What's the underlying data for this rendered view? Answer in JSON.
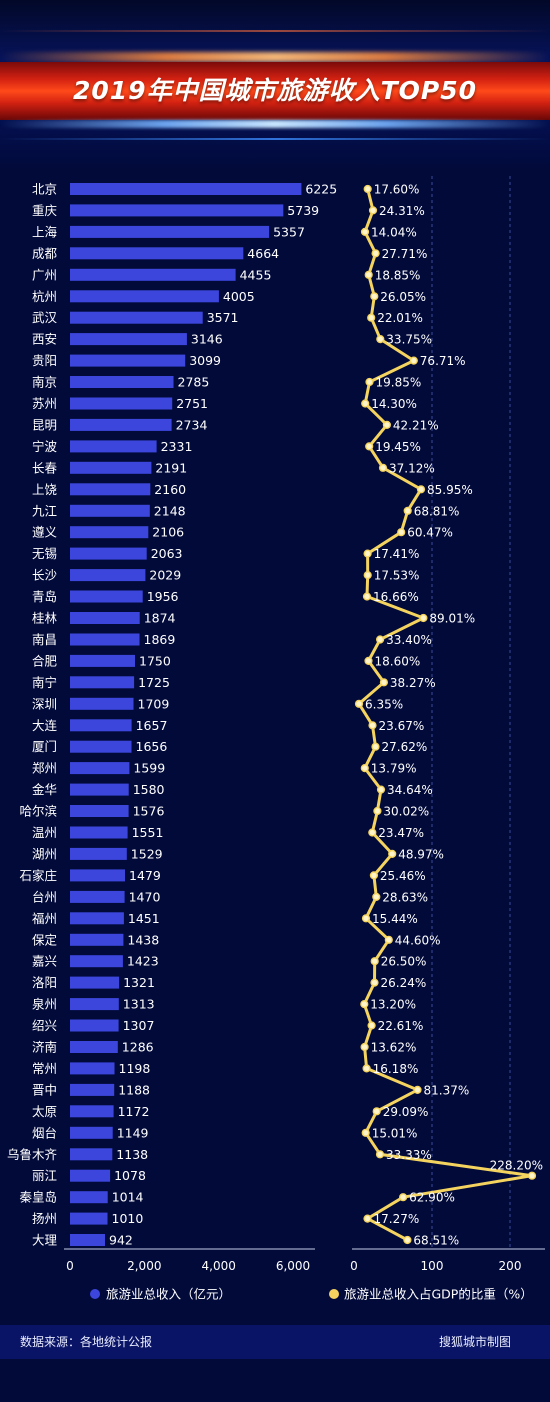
{
  "title": "2019年中国城市旅游收入TOP50",
  "source": "数据来源：各地统计公报",
  "credit": "搜狐城市制图",
  "colors": {
    "bar": "#3c46dc",
    "line": "#f4d35e",
    "background": "#020a3a",
    "footer": "#0a1466"
  },
  "chart_data": {
    "type": "bar+line",
    "categories": [
      "北京",
      "重庆",
      "上海",
      "成都",
      "广州",
      "杭州",
      "武汉",
      "西安",
      "贵阳",
      "南京",
      "苏州",
      "昆明",
      "宁波",
      "长春",
      "上饶",
      "九江",
      "遵义",
      "无锡",
      "长沙",
      "青岛",
      "桂林",
      "南昌",
      "合肥",
      "南宁",
      "深圳",
      "大连",
      "厦门",
      "郑州",
      "金华",
      "哈尔滨",
      "温州",
      "湖州",
      "石家庄",
      "台州",
      "福州",
      "保定",
      "嘉兴",
      "洛阳",
      "泉州",
      "绍兴",
      "济南",
      "常州",
      "晋中",
      "太原",
      "烟台",
      "乌鲁木齐",
      "丽江",
      "秦皇岛",
      "扬州",
      "大理"
    ],
    "series": [
      {
        "name": "旅游业总收入（亿元）",
        "type": "bar",
        "values": [
          6225,
          5739,
          5357,
          4664,
          4455,
          4005,
          3571,
          3146,
          3099,
          2785,
          2751,
          2734,
          2331,
          2191,
          2160,
          2148,
          2106,
          2063,
          2029,
          1956,
          1874,
          1869,
          1750,
          1725,
          1709,
          1657,
          1656,
          1599,
          1580,
          1576,
          1551,
          1529,
          1479,
          1470,
          1451,
          1438,
          1423,
          1321,
          1313,
          1307,
          1286,
          1198,
          1188,
          1172,
          1149,
          1138,
          1078,
          1014,
          1010,
          942
        ]
      },
      {
        "name": "旅游业总收入占GDP的比重（%）",
        "type": "line",
        "values": [
          17.6,
          24.31,
          14.04,
          27.71,
          18.85,
          26.05,
          22.01,
          33.75,
          76.71,
          19.85,
          14.3,
          42.21,
          19.45,
          37.12,
          85.95,
          68.81,
          60.47,
          17.41,
          17.53,
          16.66,
          89.01,
          33.4,
          18.6,
          38.27,
          6.35,
          23.67,
          27.62,
          13.79,
          34.64,
          30.02,
          23.47,
          48.97,
          25.46,
          28.63,
          15.44,
          44.6,
          26.5,
          26.24,
          13.2,
          22.61,
          13.62,
          16.18,
          81.37,
          29.09,
          15.01,
          33.33,
          228.2,
          62.9,
          17.27,
          68.51
        ],
        "labels": [
          "17.60%",
          "24.31%",
          "14.04%",
          "27.71%",
          "18.85%",
          "26.05%",
          "22.01%",
          "33.75%",
          "76.71%",
          "19.85%",
          "14.30%",
          "42.21%",
          "19.45%",
          "37.12%",
          "85.95%",
          "68.81%",
          "60.47%",
          "17.41%",
          "17.53%",
          "16.66%",
          "89.01%",
          "33.40%",
          "18.60%",
          "38.27%",
          "6.35%",
          "23.67%",
          "27.62%",
          "13.79%",
          "34.64%",
          "30.02%",
          "23.47%",
          "48.97%",
          "25.46%",
          "28.63%",
          "15.44%",
          "44.60%",
          "26.50%",
          "26.24%",
          "13.20%",
          "22.61%",
          "13.62%",
          "16.18%",
          "81.37%",
          "29.09%",
          "15.01%",
          "33.33%",
          "228.20%",
          "62.90%",
          "17.27%",
          "68.51%"
        ]
      }
    ],
    "bar_axis": {
      "ticks": [
        0,
        2000,
        4000,
        6000
      ],
      "tick_labels": [
        "0",
        "2,000",
        "4,000",
        "6,000"
      ],
      "xlim": [
        0,
        6400
      ]
    },
    "line_axis": {
      "ticks": [
        0,
        100,
        200
      ],
      "tick_labels": [
        "0",
        "100",
        "200"
      ],
      "xlim": [
        0,
        240
      ]
    },
    "gridlines": "dashed vertical on line panel",
    "legend_placement": "bottom"
  }
}
